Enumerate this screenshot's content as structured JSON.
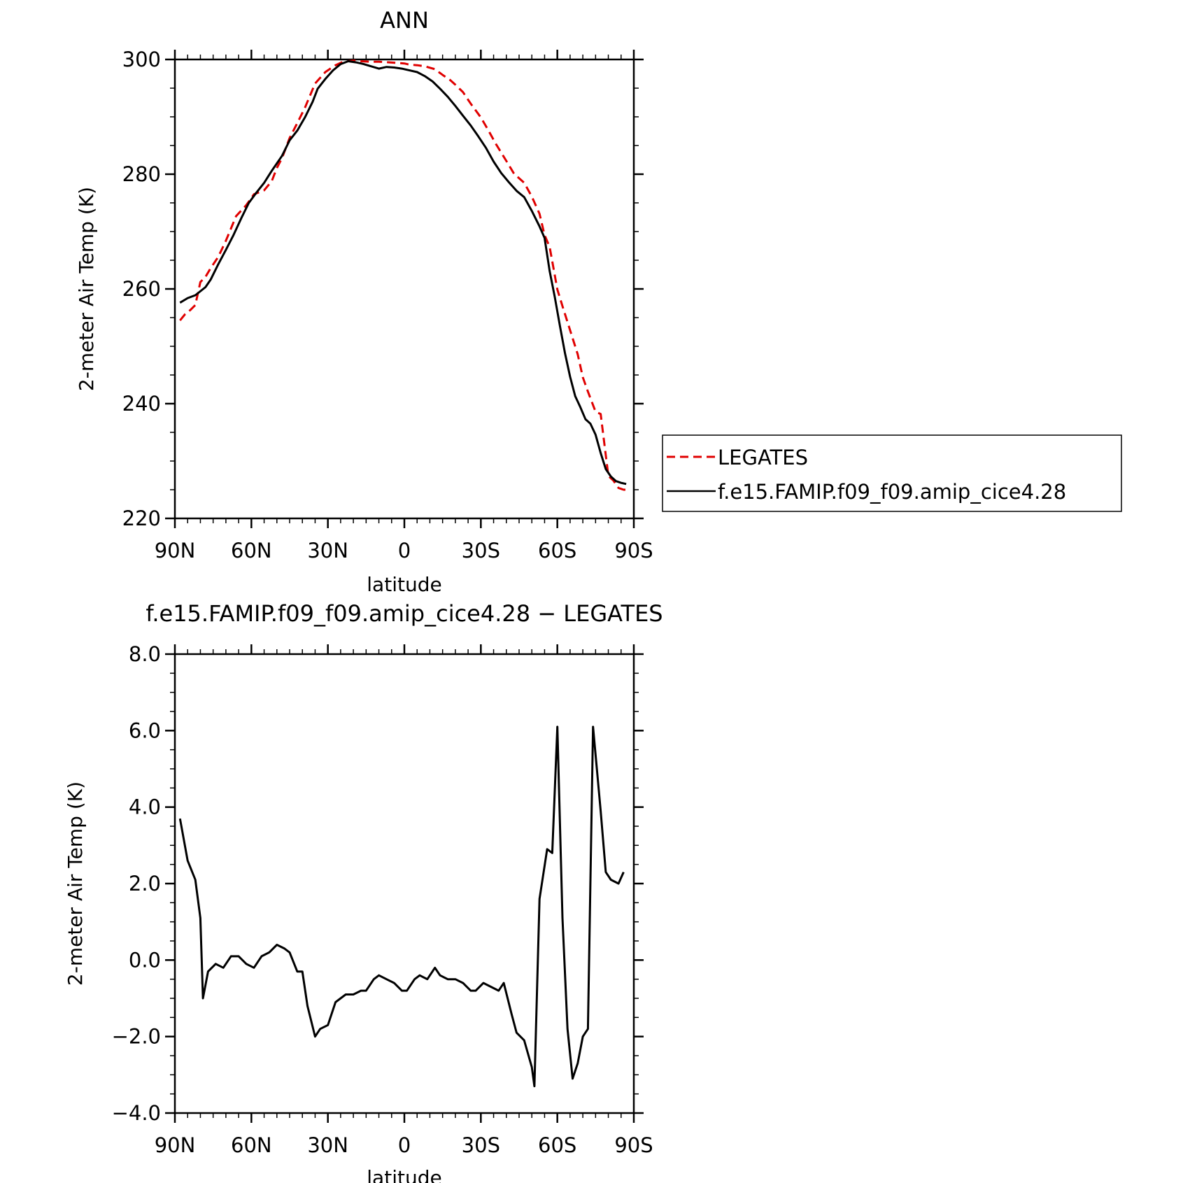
{
  "chart_data": [
    {
      "type": "line",
      "title": "ANN",
      "xlabel": "latitude",
      "ylabel": "2-meter Air Temp (K)",
      "xlim": [
        90,
        -90
      ],
      "ylim": [
        220,
        300
      ],
      "xticks": [
        "90N",
        "60N",
        "30N",
        "0",
        "30S",
        "60S",
        "90S"
      ],
      "yticks": [
        "220",
        "240",
        "260",
        "280",
        "300"
      ],
      "series": [
        {
          "name": "LEGATES",
          "color": "#e00000",
          "dash": "dashed",
          "x": [
            88,
            86,
            84,
            82,
            80,
            78,
            76,
            73,
            70,
            66,
            62,
            59,
            55,
            52,
            50,
            48,
            45,
            42,
            39,
            35,
            31,
            27,
            24,
            20,
            17,
            13,
            10,
            6,
            3,
            0,
            -2,
            -5,
            -8,
            -12,
            -15,
            -18,
            -20,
            -23,
            -26,
            -30,
            -33,
            -36,
            -40,
            -43,
            -47,
            -50,
            -53,
            -55,
            -57,
            -60,
            -62,
            -65,
            -68,
            -70,
            -72,
            -75,
            -77,
            -80,
            -82,
            -84,
            -86,
            -88
          ],
          "y": [
            254.5,
            255.6,
            256.3,
            257.2,
            261.2,
            262.1,
            263.6,
            265.6,
            268.4,
            272.7,
            274.6,
            276.5,
            277.2,
            278.8,
            281.1,
            282.8,
            286.3,
            288.9,
            291.6,
            295.8,
            297.8,
            299.0,
            299.6,
            299.8,
            299.7,
            299.6,
            299.6,
            299.5,
            299.4,
            299.3,
            299.1,
            299.0,
            298.8,
            298.3,
            297.3,
            296.4,
            295.6,
            294.3,
            292.3,
            289.9,
            287.6,
            285.2,
            282.3,
            280.1,
            278.5,
            276.1,
            273.1,
            269.4,
            267.3,
            259.9,
            257.0,
            252.8,
            248.6,
            244.6,
            242.1,
            238.6,
            238.2,
            227.4,
            226.6,
            225.3,
            225.0,
            225.0
          ]
        },
        {
          "name": "f.e15.FAMIP.f09_f09.amip_cice4.28",
          "color": "#000000",
          "dash": "solid",
          "x": [
            88,
            85,
            82,
            78,
            76,
            73,
            70,
            67,
            64,
            61,
            58,
            55,
            52,
            48,
            45,
            42,
            39,
            36,
            34,
            31,
            28,
            25,
            22,
            19,
            16,
            13,
            10,
            7,
            4,
            1,
            -2,
            -5,
            -8,
            -11,
            -14,
            -17,
            -20,
            -23,
            -26,
            -29,
            -32,
            -35,
            -38,
            -41,
            -44,
            -47,
            -50,
            -53,
            -55,
            -57,
            -59,
            -61,
            -63,
            -65,
            -67,
            -69,
            -71,
            -73,
            -75,
            -77,
            -79,
            -81,
            -83,
            -85,
            -87
          ],
          "y": [
            257.6,
            258.4,
            258.9,
            260.3,
            261.6,
            264.3,
            266.8,
            269.4,
            272.3,
            275.0,
            276.8,
            278.5,
            280.6,
            283.2,
            285.9,
            287.6,
            289.9,
            292.6,
            294.9,
            296.6,
            298.1,
            299.2,
            299.7,
            299.5,
            299.2,
            298.8,
            298.4,
            298.7,
            298.6,
            298.4,
            298.1,
            297.8,
            297.1,
            296.2,
            294.9,
            293.5,
            291.9,
            290.2,
            288.5,
            286.6,
            284.6,
            282.2,
            280.2,
            278.6,
            277.1,
            276.0,
            273.6,
            270.9,
            268.9,
            263.1,
            258.6,
            253.6,
            248.8,
            244.7,
            241.3,
            239.4,
            237.3,
            236.5,
            234.6,
            231.4,
            228.6,
            227.3,
            226.5,
            226.2,
            226.0
          ]
        }
      ],
      "legend": {
        "position": "right-of-plot",
        "entries": [
          "LEGATES",
          "f.e15.FAMIP.f09_f09.amip_cice4.28"
        ]
      }
    },
    {
      "type": "line",
      "title": "f.e15.FAMIP.f09_f09.amip_cice4.28 − LEGATES",
      "xlabel": "latitude",
      "ylabel": "2-meter Air Temp (K)",
      "xlim": [
        90,
        -90
      ],
      "ylim": [
        -4.0,
        8.0
      ],
      "xticks": [
        "90N",
        "60N",
        "30N",
        "0",
        "30S",
        "60S",
        "90S"
      ],
      "yticks": [
        "−4.0",
        "−2.0",
        "0.0",
        "2.0",
        "4.0",
        "6.0",
        "8.0"
      ],
      "series": [
        {
          "color": "#000000",
          "dash": "solid",
          "x": [
            88,
            85,
            82,
            80,
            79,
            77,
            74,
            71,
            68,
            65,
            62,
            59,
            56,
            53,
            50,
            47,
            45,
            42,
            40,
            38,
            35,
            33,
            30,
            27,
            25,
            23,
            20,
            17,
            15,
            12,
            10,
            7,
            4,
            1,
            -1,
            -4,
            -6,
            -9,
            -12,
            -14,
            -17,
            -20,
            -23,
            -26,
            -28,
            -31,
            -34,
            -37,
            -39,
            -42,
            -44,
            -47,
            -50,
            -51,
            -53,
            -56,
            -58,
            -60,
            -62,
            -64,
            -66,
            -68,
            -70,
            -72,
            -74,
            -77,
            -79,
            -81,
            -84,
            -86
          ],
          "y": [
            3.7,
            2.6,
            2.1,
            1.1,
            -1.0,
            -0.3,
            -0.1,
            -0.2,
            0.1,
            0.1,
            -0.1,
            -0.2,
            0.1,
            0.2,
            0.4,
            0.3,
            0.2,
            -0.3,
            -0.3,
            -1.2,
            -2.0,
            -1.8,
            -1.7,
            -1.1,
            -1.0,
            -0.9,
            -0.9,
            -0.8,
            -0.8,
            -0.5,
            -0.4,
            -0.5,
            -0.6,
            -0.8,
            -0.8,
            -0.5,
            -0.4,
            -0.5,
            -0.2,
            -0.4,
            -0.5,
            -0.5,
            -0.6,
            -0.8,
            -0.8,
            -0.6,
            -0.7,
            -0.8,
            -0.6,
            -1.4,
            -1.9,
            -2.1,
            -2.8,
            -3.3,
            1.6,
            2.9,
            2.8,
            6.1,
            1.1,
            -1.8,
            -3.1,
            -2.7,
            -2.0,
            -1.8,
            6.1,
            3.9,
            2.3,
            2.1,
            2.0,
            2.3
          ]
        }
      ]
    }
  ]
}
